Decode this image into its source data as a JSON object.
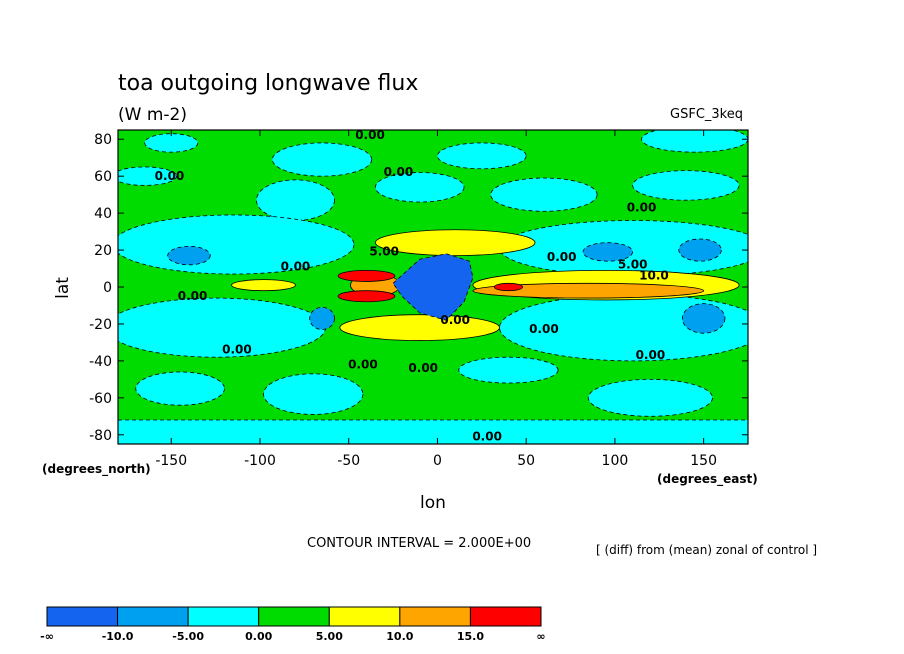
{
  "chart_data": {
    "type": "heatmap",
    "title": "toa outgoing longwave flux",
    "units": "(W m-2)",
    "dataset_label": "GSFC_3keq",
    "xlabel": "lon",
    "ylabel": "lat",
    "x_unit_label": "(degrees_east)",
    "y_unit_label": "(degrees_north)",
    "xlim": [
      -180,
      175
    ],
    "ylim": [
      -85,
      85
    ],
    "x_ticks": [
      -150,
      -100,
      -50,
      0,
      50,
      100,
      150
    ],
    "y_ticks": [
      80,
      60,
      40,
      20,
      0,
      -20,
      -40,
      -60,
      -80
    ],
    "contour_interval_text": "CONTOUR INTERVAL = 2.000E+00",
    "subtitle": "[ (diff) from (mean) zonal of control ]",
    "contour_labels": [
      {
        "text": "0.00",
        "x": -38,
        "y": 80
      },
      {
        "text": "0.00",
        "x": -151,
        "y": 58
      },
      {
        "text": "0.00",
        "x": -22,
        "y": 60
      },
      {
        "text": "0.00",
        "x": 115,
        "y": 41
      },
      {
        "text": "0.00",
        "x": -80,
        "y": 9
      },
      {
        "text": "5.00",
        "x": -30,
        "y": 17
      },
      {
        "text": "0.00",
        "x": 70,
        "y": 14
      },
      {
        "text": "5.00",
        "x": 110,
        "y": 10
      },
      {
        "text": "10.0",
        "x": 122,
        "y": 4
      },
      {
        "text": "0.00",
        "x": -138,
        "y": -7
      },
      {
        "text": "0.00",
        "x": 10,
        "y": -20
      },
      {
        "text": "0.00",
        "x": 60,
        "y": -25
      },
      {
        "text": "0.00",
        "x": -113,
        "y": -36
      },
      {
        "text": "0.00",
        "x": 120,
        "y": -39
      },
      {
        "text": "0.00",
        "x": -42,
        "y": -44
      },
      {
        "text": "0.00",
        "x": -8,
        "y": -46
      },
      {
        "text": "0.00",
        "x": 28,
        "y": -83
      }
    ],
    "colorbar": {
      "colors": [
        "#1464f0",
        "#00a0f0",
        "#00ffff",
        "#00dc00",
        "#ffff00",
        "#ffa500",
        "#ff0000"
      ],
      "labels": [
        "-∞",
        "-10.0",
        "-5.00",
        "0.00",
        "5.00",
        "10.0",
        "15.0",
        "∞"
      ]
    },
    "background_color": "#00dc00",
    "features": [
      {
        "level": -5,
        "shape": "ellipse",
        "lon": -150,
        "lat": 78,
        "rx": 15,
        "ry": 5
      },
      {
        "level": -5,
        "shape": "ellipse",
        "lon": -65,
        "lat": 69,
        "rx": 28,
        "ry": 9
      },
      {
        "level": -5,
        "shape": "ellipse",
        "lon": 25,
        "lat": 71,
        "rx": 25,
        "ry": 7
      },
      {
        "level": -5,
        "shape": "ellipse",
        "lon": 145,
        "lat": 80,
        "rx": 30,
        "ry": 7
      },
      {
        "level": -5,
        "shape": "ellipse",
        "lon": -165,
        "lat": 60,
        "rx": 18,
        "ry": 5
      },
      {
        "level": -5,
        "shape": "ellipse",
        "lon": -80,
        "lat": 47,
        "rx": 22,
        "ry": 11
      },
      {
        "level": -5,
        "shape": "ellipse",
        "lon": -10,
        "lat": 54,
        "rx": 25,
        "ry": 8
      },
      {
        "level": -5,
        "shape": "ellipse",
        "lon": 60,
        "lat": 50,
        "rx": 30,
        "ry": 9
      },
      {
        "level": -5,
        "shape": "ellipse",
        "lon": 140,
        "lat": 55,
        "rx": 30,
        "ry": 8
      },
      {
        "level": -5,
        "shape": "ellipse",
        "lon": -115,
        "lat": 23,
        "rx": 68,
        "ry": 16
      },
      {
        "level": -5,
        "shape": "ellipse",
        "lon": 110,
        "lat": 21,
        "rx": 75,
        "ry": 15
      },
      {
        "level": -5,
        "shape": "ellipse",
        "lon": -125,
        "lat": -22,
        "rx": 62,
        "ry": 16
      },
      {
        "level": -5,
        "shape": "ellipse",
        "lon": 110,
        "lat": -22,
        "rx": 75,
        "ry": 18
      },
      {
        "level": -5,
        "shape": "ellipse",
        "lon": -145,
        "lat": -55,
        "rx": 25,
        "ry": 9
      },
      {
        "level": -5,
        "shape": "ellipse",
        "lon": -70,
        "lat": -58,
        "rx": 28,
        "ry": 11
      },
      {
        "level": -5,
        "shape": "ellipse",
        "lon": 40,
        "lat": -45,
        "rx": 28,
        "ry": 7
      },
      {
        "level": -5,
        "shape": "ellipse",
        "lon": 120,
        "lat": -60,
        "rx": 35,
        "ry": 10
      },
      {
        "level": -5,
        "shape": "rect",
        "lon0": -180,
        "lat0": -85,
        "lon1": 175,
        "lat1": -72
      },
      {
        "level": -10,
        "shape": "ellipse",
        "lon": -140,
        "lat": 17,
        "rx": 12,
        "ry": 5
      },
      {
        "level": -10,
        "shape": "ellipse",
        "lon": 96,
        "lat": 19,
        "rx": 14,
        "ry": 5
      },
      {
        "level": -10,
        "shape": "ellipse",
        "lon": 148,
        "lat": 20,
        "rx": 12,
        "ry": 6
      },
      {
        "level": -10,
        "shape": "ellipse",
        "lon": -65,
        "lat": -17,
        "rx": 7,
        "ry": 6
      },
      {
        "level": -10,
        "shape": "ellipse",
        "lon": 150,
        "lat": -17,
        "rx": 12,
        "ry": 8
      },
      {
        "level": 5,
        "shape": "ellipse",
        "lon": -98,
        "lat": 1,
        "rx": 18,
        "ry": 3
      },
      {
        "level": 5,
        "shape": "ellipse",
        "lon": 10,
        "lat": 24,
        "rx": 45,
        "ry": 7
      },
      {
        "level": 5,
        "shape": "ellipse",
        "lon": -10,
        "lat": -22,
        "rx": 45,
        "ry": 7
      },
      {
        "level": 5,
        "shape": "ellipse",
        "lon": 95,
        "lat": 1,
        "rx": 75,
        "ry": 8
      },
      {
        "level": 10,
        "shape": "ellipse",
        "lon": 85,
        "lat": -2,
        "rx": 65,
        "ry": 4
      },
      {
        "level": 10,
        "shape": "ellipse",
        "lon": -35,
        "lat": 1,
        "rx": 14,
        "ry": 6
      },
      {
        "level": 15,
        "shape": "ellipse",
        "lon": -40,
        "lat": 6,
        "rx": 16,
        "ry": 3
      },
      {
        "level": 15,
        "shape": "ellipse",
        "lon": -40,
        "lat": -5,
        "rx": 16,
        "ry": 3
      },
      {
        "level": 15,
        "shape": "ellipse",
        "lon": 40,
        "lat": 0,
        "rx": 8,
        "ry": 2
      },
      {
        "level": -15,
        "shape": "polygon",
        "points": [
          [
            -25,
            2
          ],
          [
            -10,
            15
          ],
          [
            5,
            18
          ],
          [
            18,
            14
          ],
          [
            20,
            5
          ],
          [
            15,
            -8
          ],
          [
            5,
            -18
          ],
          [
            -10,
            -14
          ],
          [
            -20,
            -5
          ]
        ]
      }
    ]
  }
}
